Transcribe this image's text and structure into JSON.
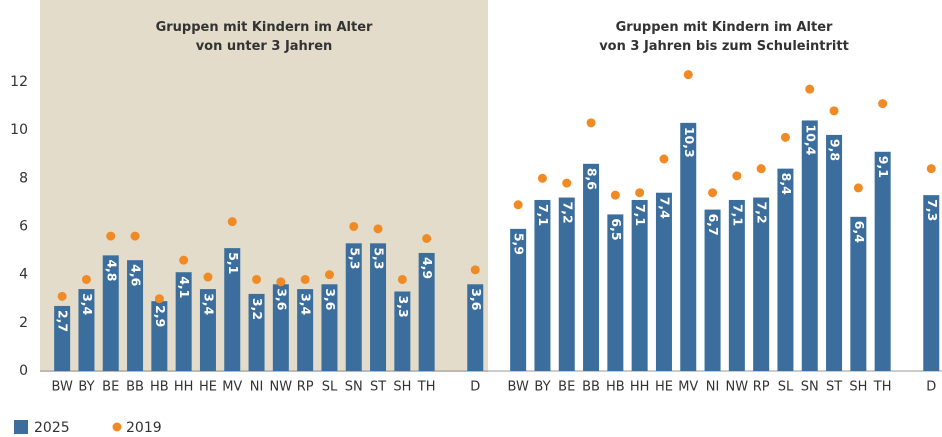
{
  "chart_data": [
    {
      "type": "bar",
      "title": "Gruppen mit Kindern im Alter\nvon unter 3 Jahren",
      "background": "#e3dccb",
      "categories": [
        "BW",
        "BY",
        "BE",
        "BB",
        "HB",
        "HH",
        "HE",
        "MV",
        "NI",
        "NW",
        "RP",
        "SL",
        "SN",
        "ST",
        "SH",
        "TH",
        null,
        "D"
      ],
      "series": [
        {
          "name": "2025",
          "color": "#3b6e9c",
          "kind": "bar",
          "values": [
            2.7,
            3.4,
            4.8,
            4.6,
            2.9,
            4.1,
            3.4,
            5.1,
            3.2,
            3.6,
            3.4,
            3.6,
            5.3,
            5.3,
            3.3,
            4.9,
            null,
            3.6
          ],
          "value_labels": [
            "2,7",
            "3,4",
            "4,8",
            "4,6",
            "2,9",
            "4,1",
            "3,4",
            "5,1",
            "3,2",
            "3,6",
            "3,4",
            "3,6",
            "5,3",
            "5,3",
            "3,3",
            "4,9",
            null,
            "3,6"
          ]
        },
        {
          "name": "2019",
          "color": "#f08a24",
          "kind": "dot",
          "values": [
            3.1,
            3.8,
            5.6,
            5.6,
            3.0,
            4.6,
            3.9,
            6.2,
            3.8,
            3.7,
            3.8,
            4.0,
            6.0,
            5.9,
            3.8,
            5.5,
            null,
            4.2
          ]
        }
      ],
      "ylim": [
        0,
        15.4
      ],
      "yticks": [
        0,
        2,
        4,
        6,
        8,
        10,
        12
      ]
    },
    {
      "type": "bar",
      "title": "Gruppen mit Kindern im Alter\nvon 3 Jahren bis zum Schuleintritt",
      "categories": [
        "BW",
        "BY",
        "BE",
        "BB",
        "HB",
        "HH",
        "HE",
        "MV",
        "NI",
        "NW",
        "RP",
        "SL",
        "SN",
        "ST",
        "SH",
        "TH",
        null,
        "D"
      ],
      "series": [
        {
          "color": "#3b6e9c",
          "kind": "bar",
          "values": [
            5.9,
            7.1,
            7.2,
            8.6,
            6.5,
            7.1,
            7.4,
            10.3,
            6.7,
            7.1,
            7.2,
            8.4,
            10.4,
            9.8,
            6.4,
            9.1,
            null,
            7.3
          ],
          "value_labels": [
            "5,9",
            "7,1",
            "7,2",
            "8,6",
            "6,5",
            "7,1",
            "7,4",
            "10,3",
            "6,7",
            "7,1",
            "7,2",
            "8,4",
            "10,4",
            "9,8",
            "6,4",
            "9,1",
            null,
            "7,3"
          ]
        },
        {
          "color": "#f08a24",
          "kind": "dot",
          "values": [
            6.9,
            8.0,
            7.8,
            10.3,
            7.3,
            7.4,
            8.8,
            12.3,
            7.4,
            8.1,
            8.4,
            9.7,
            11.7,
            10.8,
            7.6,
            11.1,
            null,
            8.4
          ]
        }
      ],
      "ylim": [
        0,
        15.4
      ]
    }
  ]
}
